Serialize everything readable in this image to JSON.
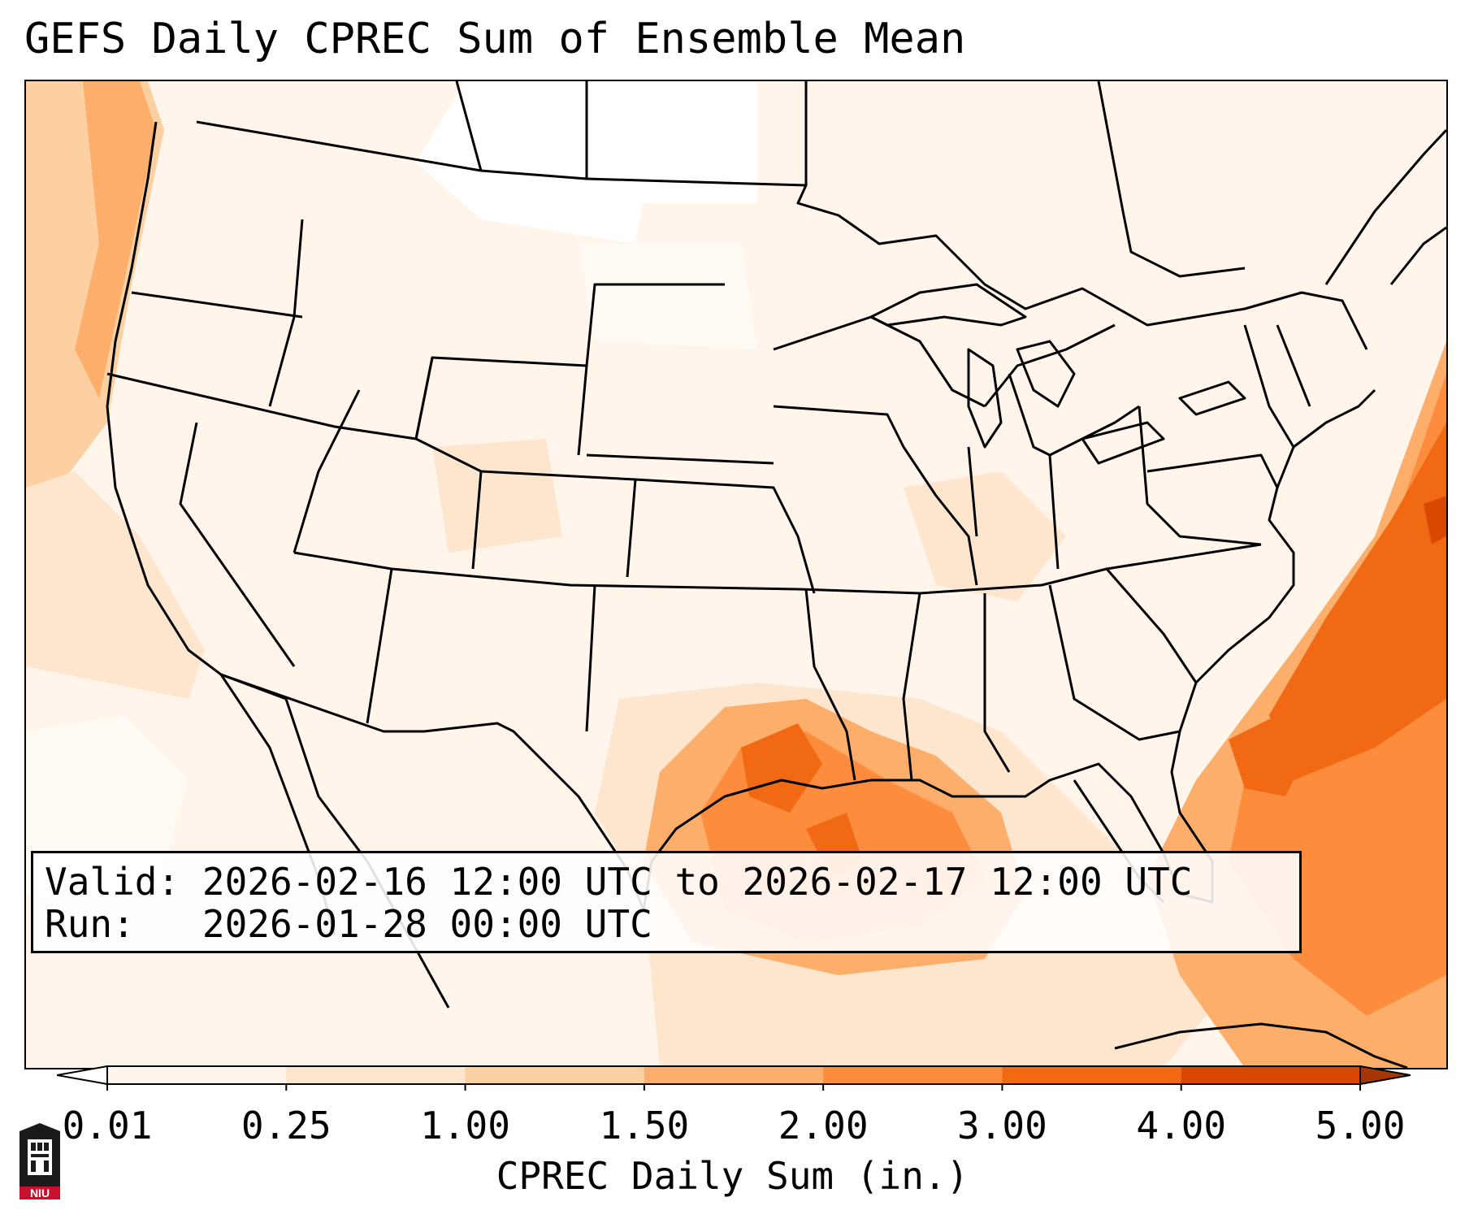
{
  "title": "GEFS Daily CPREC Sum of Ensemble Mean",
  "info": {
    "valid_label": "Valid:",
    "valid_value": "2026-02-16 12:00 UTC to 2026-02-17 12:00 UTC",
    "run_label": "Run:",
    "run_value": "2026-01-28 00:00 UTC"
  },
  "colorbar": {
    "label": "CPREC Daily Sum (in.)",
    "ticks": [
      "0.01",
      "0.25",
      "1.00",
      "1.50",
      "2.00",
      "3.00",
      "4.00",
      "5.00"
    ],
    "colors": [
      "#fff5eb",
      "#fee6ce",
      "#fdd0a2",
      "#fdae6b",
      "#fd8d3c",
      "#f16913",
      "#d94801"
    ],
    "under_color": "#ffffff",
    "over_color": "#a63603"
  },
  "logo": {
    "text": "NIU",
    "color": "#c8102e"
  }
}
